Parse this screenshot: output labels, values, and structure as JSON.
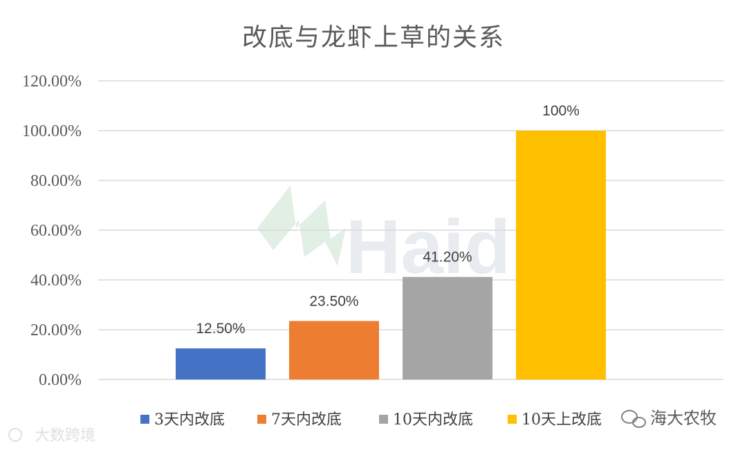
{
  "chart_data": {
    "type": "bar",
    "title": "改底与龙虾上草的关系",
    "categories": [
      "3天内改底",
      "7天内改底",
      "10天内改底",
      "10天上改底"
    ],
    "values": [
      12.5,
      23.5,
      41.2,
      100
    ],
    "data_labels": [
      "12.50%",
      "23.50%",
      "41.20%",
      "100%"
    ],
    "colors": [
      "#4472c4",
      "#ed7d31",
      "#a5a5a5",
      "#ffc000"
    ],
    "ylim": [
      0,
      120
    ],
    "yticks": [
      0,
      20,
      40,
      60,
      80,
      100,
      120
    ],
    "ytick_labels": [
      "0.00%",
      "20.00%",
      "40.00%",
      "60.00%",
      "80.00%",
      "100.00%",
      "120.00%"
    ],
    "xlabel": "",
    "ylabel": "",
    "grid": true,
    "legend_position": "bottom"
  },
  "watermarks": {
    "center_logo_text": "Haid",
    "bottom_right": "海大农牧",
    "bottom_left": "大数跨境"
  }
}
